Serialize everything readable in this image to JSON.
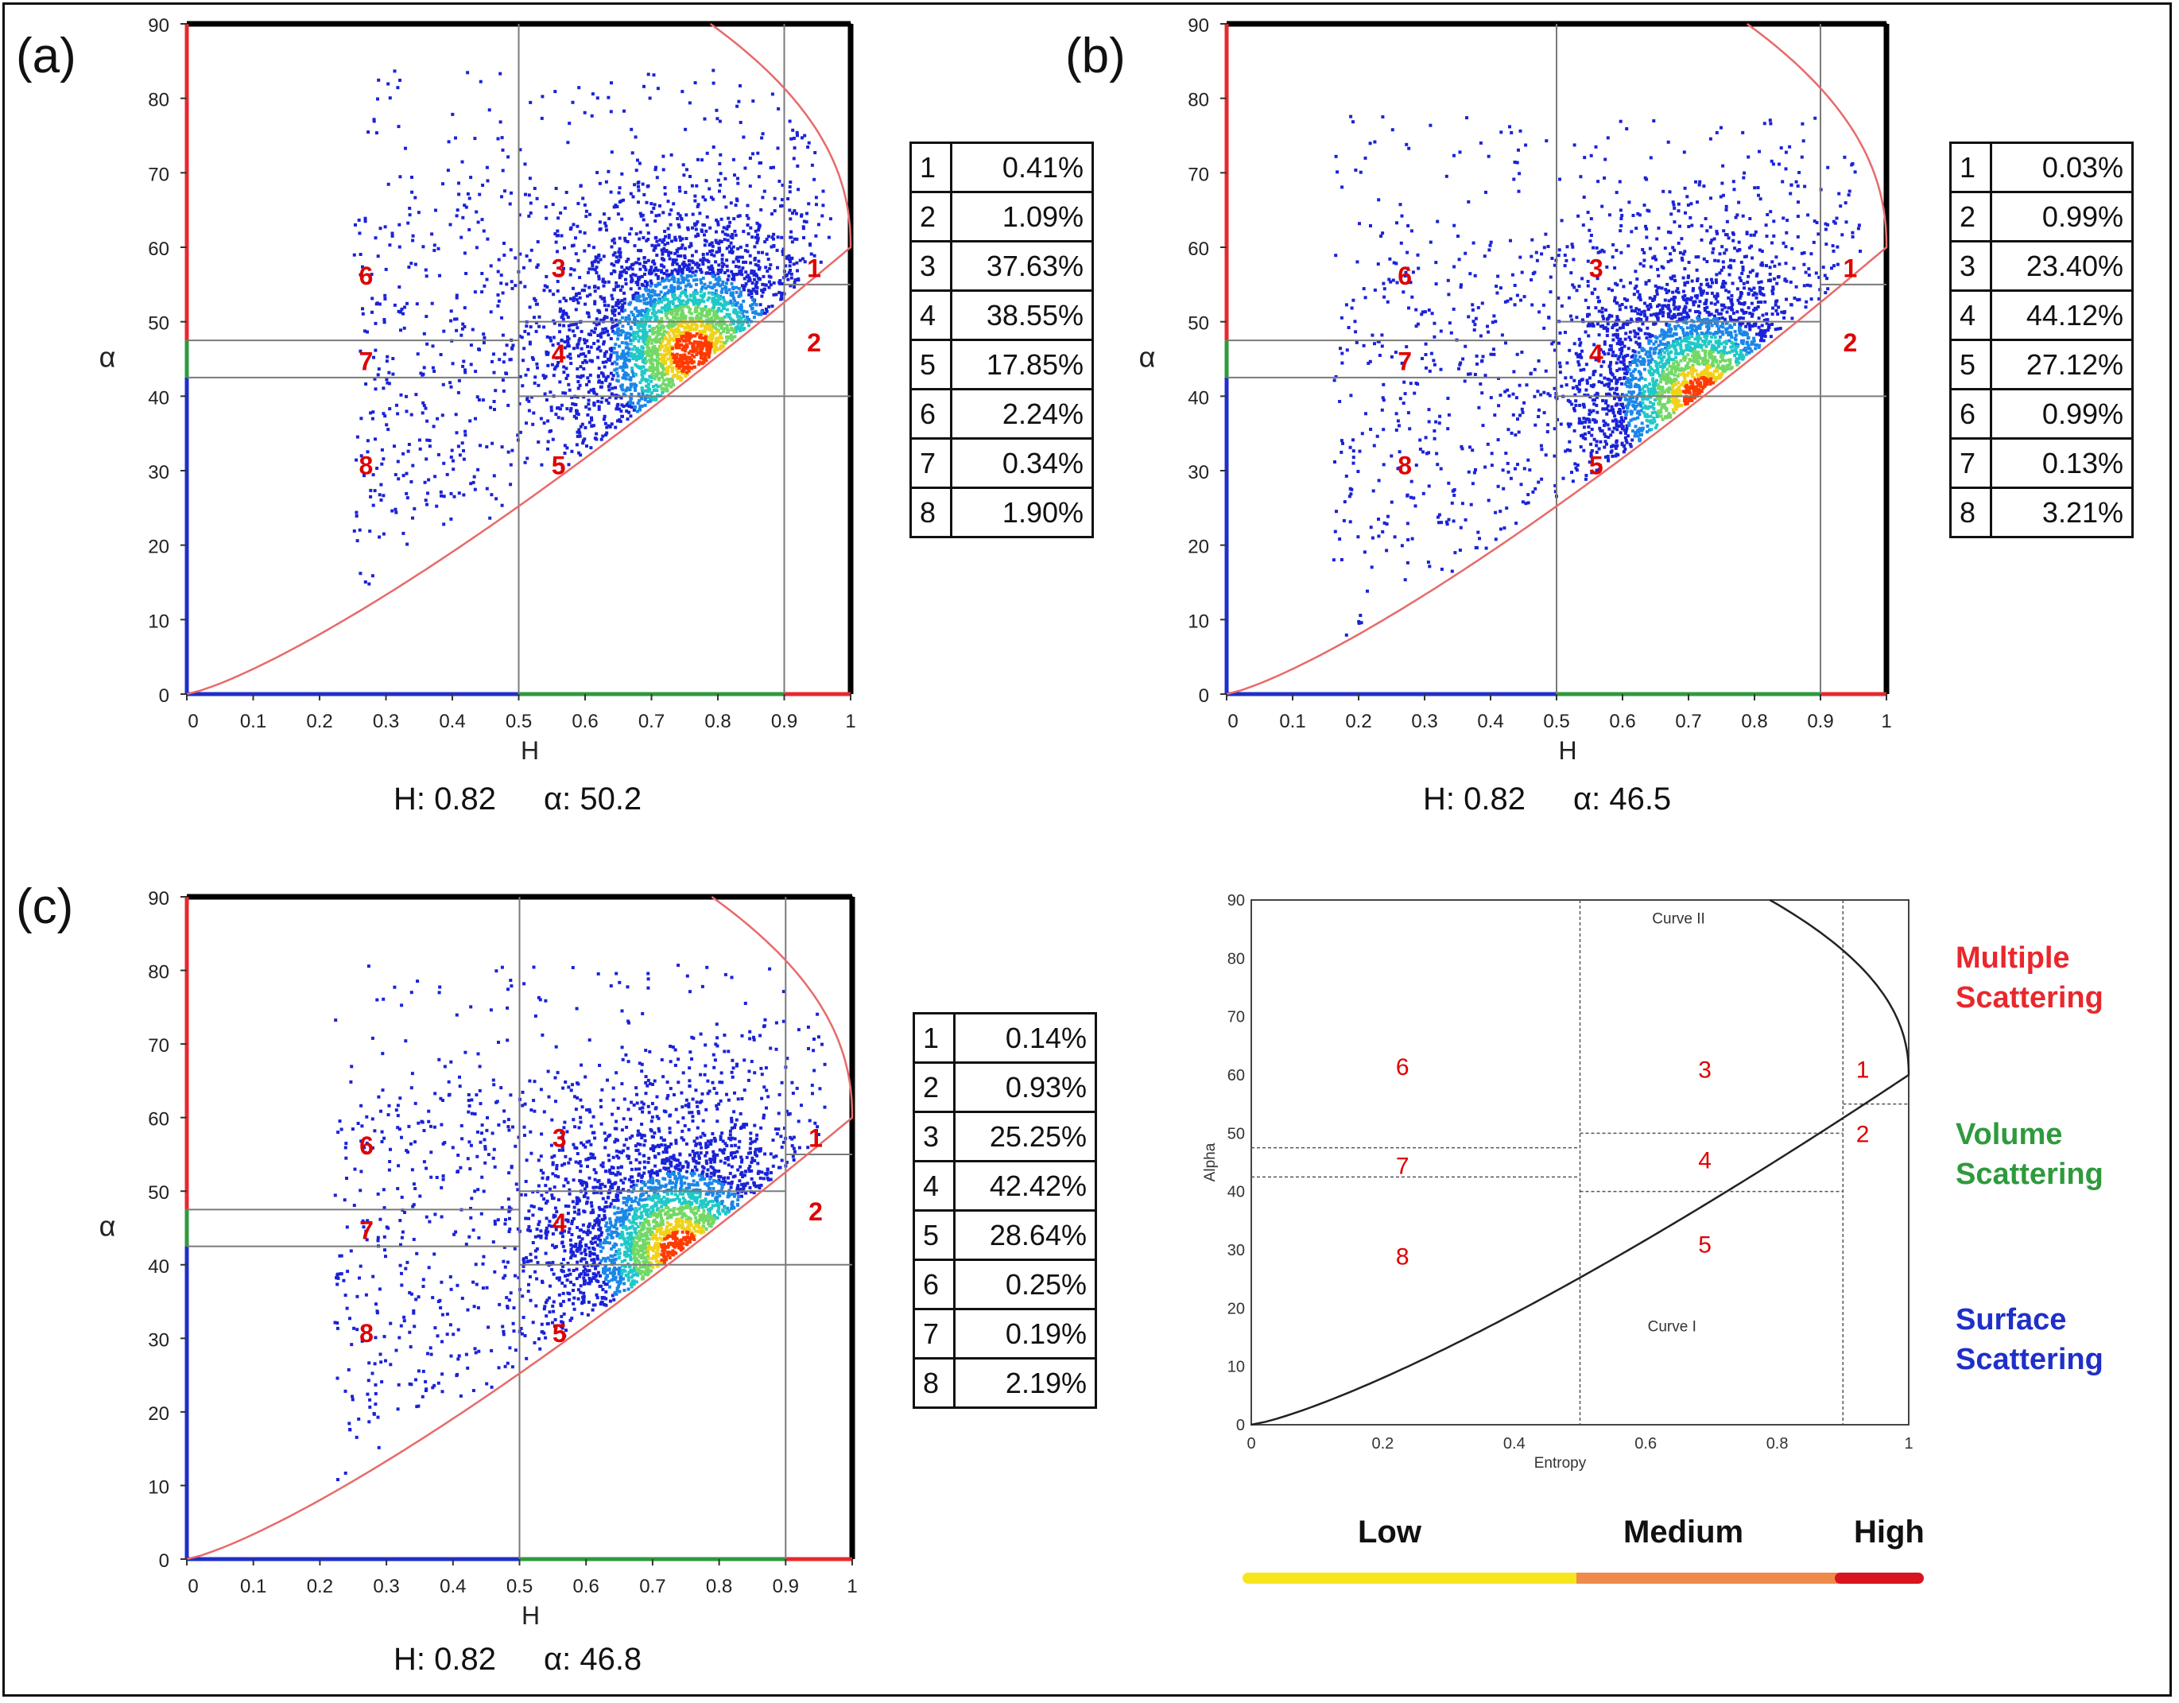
{
  "chart_data": [
    {
      "type": "scatter",
      "panel_label": "(a)",
      "xlabel": "H",
      "ylabel": "α",
      "xlim": [
        0,
        1
      ],
      "ylim": [
        0,
        90
      ],
      "xticks": [
        "0",
        "0.1",
        "0.2",
        "0.3",
        "0.4",
        "0.5",
        "0.6",
        "0.7",
        "0.8",
        "0.9",
        "1"
      ],
      "yticks": [
        "0",
        "10",
        "20",
        "30",
        "40",
        "50",
        "60",
        "70",
        "80",
        "90"
      ],
      "density_center": {
        "H": 0.76,
        "alpha": 46
      },
      "point_range": {
        "H": [
          0.25,
          0.97
        ],
        "alpha": [
          12,
          84
        ]
      },
      "zone_labels": [
        "1",
        "2",
        "3",
        "4",
        "5",
        "6",
        "7",
        "8"
      ],
      "readout": {
        "h": "H: 0.82",
        "alpha": "α: 50.2"
      },
      "table": [
        {
          "zone": "1",
          "value": "0.41%"
        },
        {
          "zone": "2",
          "value": "1.09%"
        },
        {
          "zone": "3",
          "value": "37.63%"
        },
        {
          "zone": "4",
          "value": "38.55%"
        },
        {
          "zone": "5",
          "value": "17.85%"
        },
        {
          "zone": "6",
          "value": "2.24%"
        },
        {
          "zone": "7",
          "value": "0.34%"
        },
        {
          "zone": "8",
          "value": "1.90%"
        }
      ]
    },
    {
      "type": "scatter",
      "panel_label": "(b)",
      "xlabel": "H",
      "ylabel": "α",
      "xlim": [
        0,
        1
      ],
      "ylim": [
        0,
        90
      ],
      "xticks": [
        "0",
        "0.1",
        "0.2",
        "0.3",
        "0.4",
        "0.5",
        "0.6",
        "0.7",
        "0.8",
        "0.9",
        "1"
      ],
      "yticks": [
        "0",
        "10",
        "20",
        "30",
        "40",
        "50",
        "60",
        "70",
        "80",
        "90"
      ],
      "density_center": {
        "H": 0.72,
        "alpha": 40
      },
      "point_range": {
        "H": [
          0.16,
          0.96
        ],
        "alpha": [
          6,
          78
        ]
      },
      "zone_labels": [
        "1",
        "2",
        "3",
        "4",
        "5",
        "6",
        "7",
        "8"
      ],
      "readout": {
        "h": "H: 0.82",
        "alpha": "α: 46.5"
      },
      "table": [
        {
          "zone": "1",
          "value": "0.03%"
        },
        {
          "zone": "2",
          "value": "0.99%"
        },
        {
          "zone": "3",
          "value": "23.40%"
        },
        {
          "zone": "4",
          "value": "44.12%"
        },
        {
          "zone": "5",
          "value": "27.12%"
        },
        {
          "zone": "6",
          "value": "0.99%"
        },
        {
          "zone": "7",
          "value": "0.13%"
        },
        {
          "zone": "8",
          "value": "3.21%"
        }
      ]
    },
    {
      "type": "scatter",
      "panel_label": "(c)",
      "xlabel": "H",
      "ylabel": "α",
      "xlim": [
        0,
        1
      ],
      "ylim": [
        0,
        90
      ],
      "xticks": [
        "0",
        "0.1",
        "0.2",
        "0.3",
        "0.4",
        "0.5",
        "0.6",
        "0.7",
        "0.8",
        "0.9",
        "1"
      ],
      "yticks": [
        "0",
        "10",
        "20",
        "30",
        "40",
        "50",
        "60",
        "70",
        "80",
        "90"
      ],
      "density_center": {
        "H": 0.74,
        "alpha": 42
      },
      "point_range": {
        "H": [
          0.22,
          0.96
        ],
        "alpha": [
          8,
          81
        ]
      },
      "zone_labels": [
        "1",
        "2",
        "3",
        "4",
        "5",
        "6",
        "7",
        "8"
      ],
      "readout": {
        "h": "H: 0.82",
        "alpha": "α: 46.8"
      },
      "table": [
        {
          "zone": "1",
          "value": "0.14%"
        },
        {
          "zone": "2",
          "value": "0.93%"
        },
        {
          "zone": "3",
          "value": "25.25%"
        },
        {
          "zone": "4",
          "value": "42.42%"
        },
        {
          "zone": "5",
          "value": "28.64%"
        },
        {
          "zone": "6",
          "value": "0.25%"
        },
        {
          "zone": "7",
          "value": "0.19%"
        },
        {
          "zone": "8",
          "value": "2.19%"
        }
      ]
    },
    {
      "type": "line",
      "xlabel": "Entropy",
      "ylabel": "Alpha",
      "xlim": [
        0,
        1
      ],
      "ylim": [
        0,
        90
      ],
      "xticks": [
        "0",
        "0.2",
        "0.4",
        "0.6",
        "0.8",
        "1"
      ],
      "yticks": [
        "0",
        "10",
        "20",
        "30",
        "40",
        "50",
        "60",
        "70",
        "80",
        "90"
      ],
      "curve_labels": [
        "Curve II",
        "Curve I"
      ],
      "zone_labels": [
        "1",
        "2",
        "3",
        "4",
        "5",
        "6",
        "7",
        "8"
      ],
      "boundaries": {
        "entropy": [
          0.5,
          0.9
        ],
        "alpha": [
          40,
          42.5,
          47.5,
          50,
          55
        ]
      }
    }
  ],
  "legend": {
    "multiple": [
      "Multiple",
      "Scattering"
    ],
    "volume": [
      "Volume",
      "Scattering"
    ],
    "surface": [
      "Surface",
      "Scattering"
    ]
  },
  "entropy_bar": {
    "low": "Low",
    "medium": "Medium",
    "high": "High"
  },
  "colors": {
    "multiple": "#e8282d",
    "volume": "#2e9a3c",
    "surface": "#1f2fc8",
    "zone_label": "#e00000",
    "bar_low": "#f7e51e",
    "bar_medium": "#ef8a4a",
    "bar_high": "#d8141e"
  }
}
